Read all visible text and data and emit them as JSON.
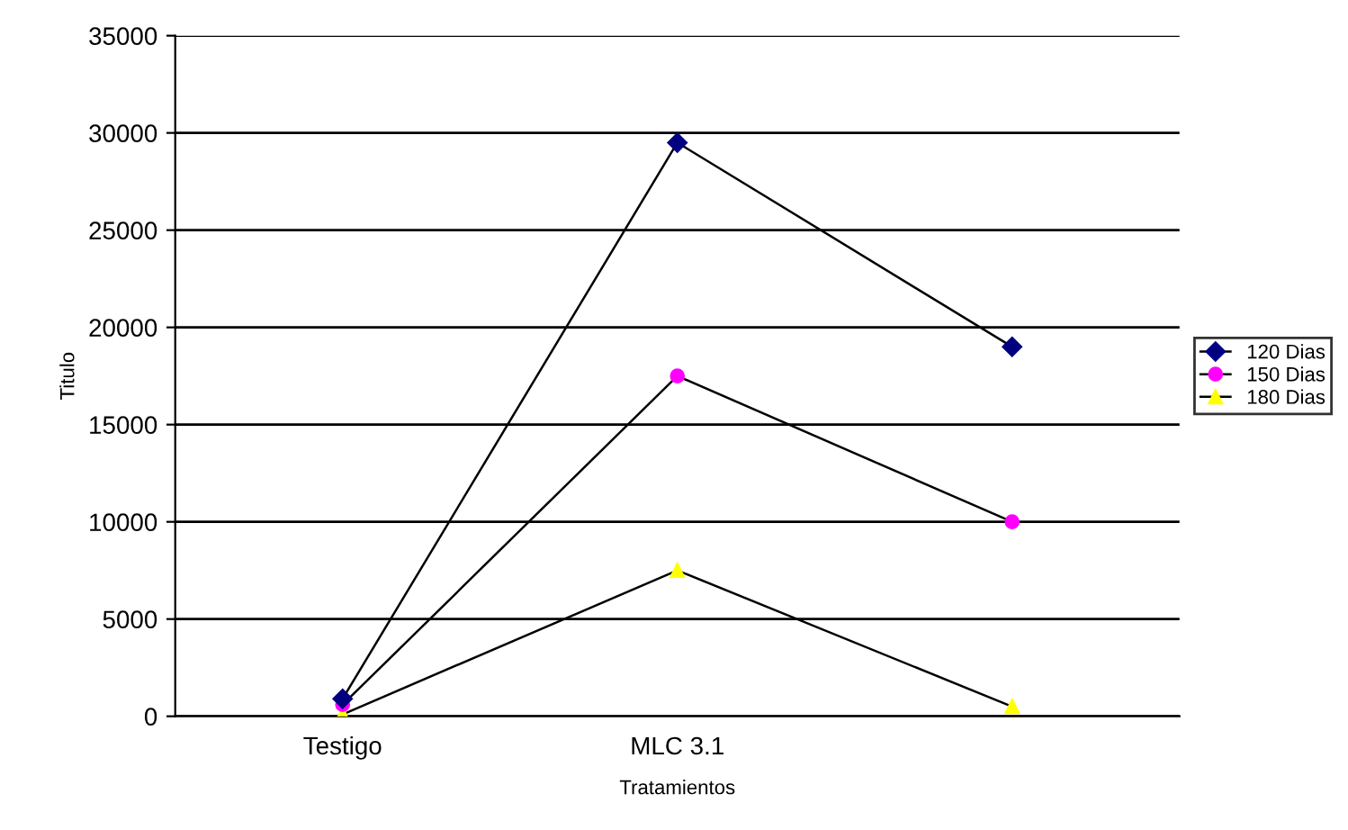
{
  "chart_data": {
    "type": "line",
    "xlabel": "Tratamientos",
    "ylabel": "Titulo",
    "categories": [
      "Testigo",
      "MLC 3.1",
      null
    ],
    "series": [
      {
        "name": "120 Dias",
        "color": "#000080",
        "marker": "diamond",
        "values": [
          900,
          29500,
          19000
        ]
      },
      {
        "name": "150 Dias",
        "color": "#ff00ff",
        "marker": "circle",
        "values": [
          600,
          17500,
          10000
        ]
      },
      {
        "name": "180 Dias",
        "color": "#ffff00",
        "marker": "triangle",
        "values": [
          100,
          7500,
          500
        ]
      }
    ],
    "ylim": [
      0,
      35000
    ],
    "yticks": [
      0,
      5000,
      10000,
      15000,
      20000,
      25000,
      30000,
      35000
    ],
    "grid": "y",
    "legend": "right",
    "line_style": "solid"
  }
}
